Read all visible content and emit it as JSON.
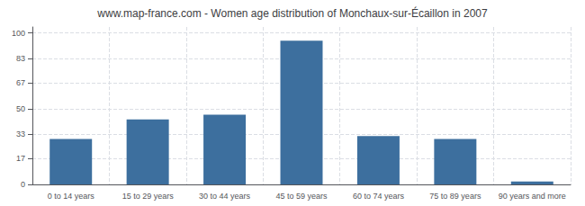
{
  "chart_data": {
    "type": "bar",
    "title": "www.map-france.com - Women age distribution of Monchaux-sur-Écaillon in 2007",
    "categories": [
      "0 to 14 years",
      "15 to 29 years",
      "30 to 44 years",
      "45 to 59 years",
      "60 to 74 years",
      "75 to 89 years",
      "90 years and more"
    ],
    "values": [
      30,
      43,
      46,
      95,
      32,
      30,
      2
    ],
    "color": "#3d6f9e",
    "ylim": [
      0,
      104
    ],
    "yticks": [
      0,
      17,
      33,
      50,
      67,
      83,
      100
    ],
    "grid": true
  }
}
